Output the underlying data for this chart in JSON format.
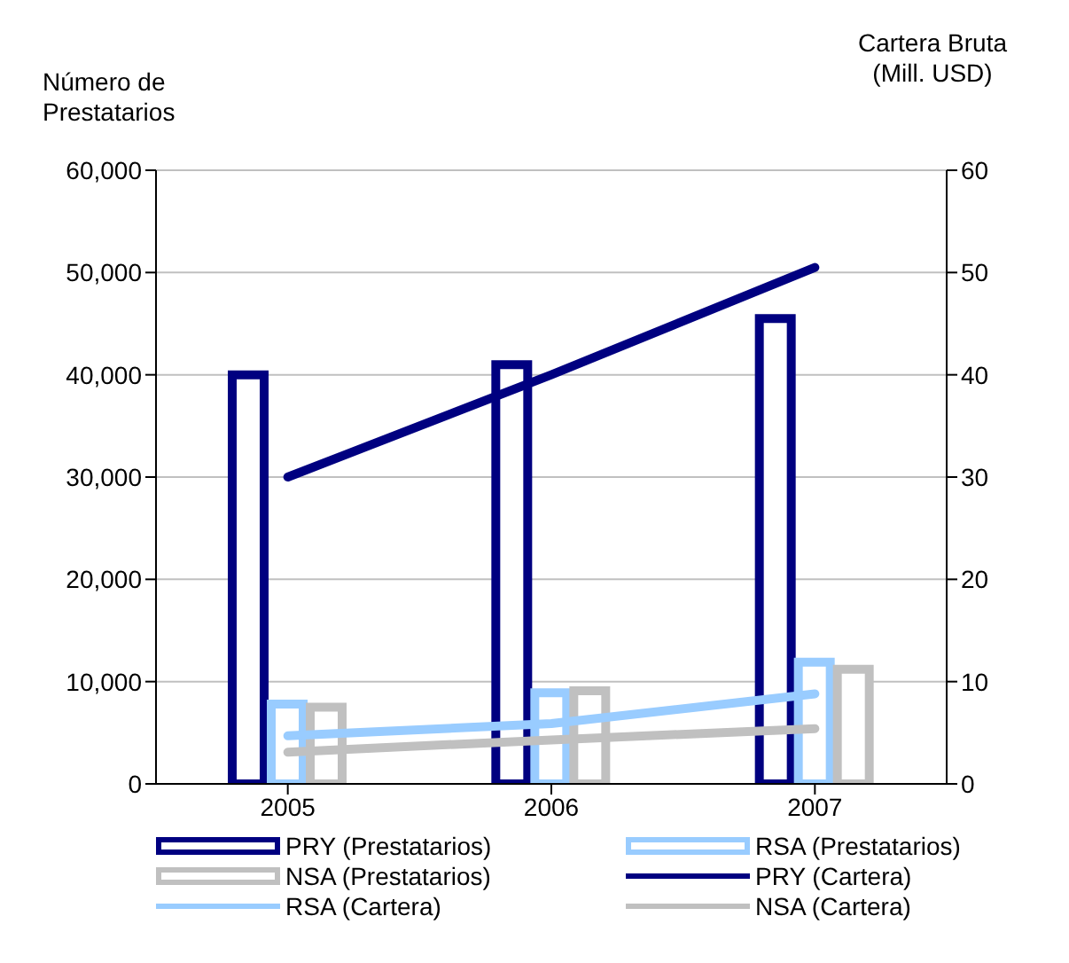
{
  "chart_data": {
    "type": "bar",
    "ylabel": "Número de Prestatarios",
    "y2label": "Cartera Bruta (Mill. USD)",
    "categories": [
      "2005",
      "2006",
      "2007"
    ],
    "series": [
      {
        "name": "PRY (Prestatarios)",
        "color": "#000080",
        "values": [
          40000,
          41000,
          45500
        ]
      },
      {
        "name": "RSA (Prestatarios)",
        "color": "#99ccff",
        "values": [
          7800,
          8900,
          11900
        ]
      },
      {
        "name": "NSA (Prestatarios)",
        "color": "#c0c0c0",
        "values": [
          7500,
          9100,
          11200
        ]
      },
      {
        "name": "PRY (Cartera)",
        "type": "line",
        "axis": "y2",
        "color": "#000080",
        "values": [
          30,
          40,
          50.5
        ]
      },
      {
        "name": "RSA (Cartera)",
        "type": "line",
        "axis": "y2",
        "color": "#99ccff",
        "values": [
          4.7,
          5.9,
          8.8
        ]
      },
      {
        "name": "NSA (Cartera)",
        "type": "line",
        "axis": "y2",
        "color": "#c0c0c0",
        "values": [
          3.1,
          4.3,
          5.4
        ]
      }
    ],
    "ylim": [
      0,
      60000
    ],
    "yticks": [
      {
        "value": 0,
        "label": "0"
      },
      {
        "value": 10000,
        "label": "10,000"
      },
      {
        "value": 20000,
        "label": "20,000"
      },
      {
        "value": 30000,
        "label": "30,000"
      },
      {
        "value": 40000,
        "label": "40,000"
      },
      {
        "value": 50000,
        "label": "50,000"
      },
      {
        "value": 60000,
        "label": "60,000"
      }
    ],
    "y2lim": [
      0,
      60
    ],
    "y2ticks": [
      0,
      10,
      20,
      30,
      40,
      50,
      60
    ],
    "grid": "y",
    "legend": "bottom",
    "marker": "none",
    "line_style": "solid"
  }
}
